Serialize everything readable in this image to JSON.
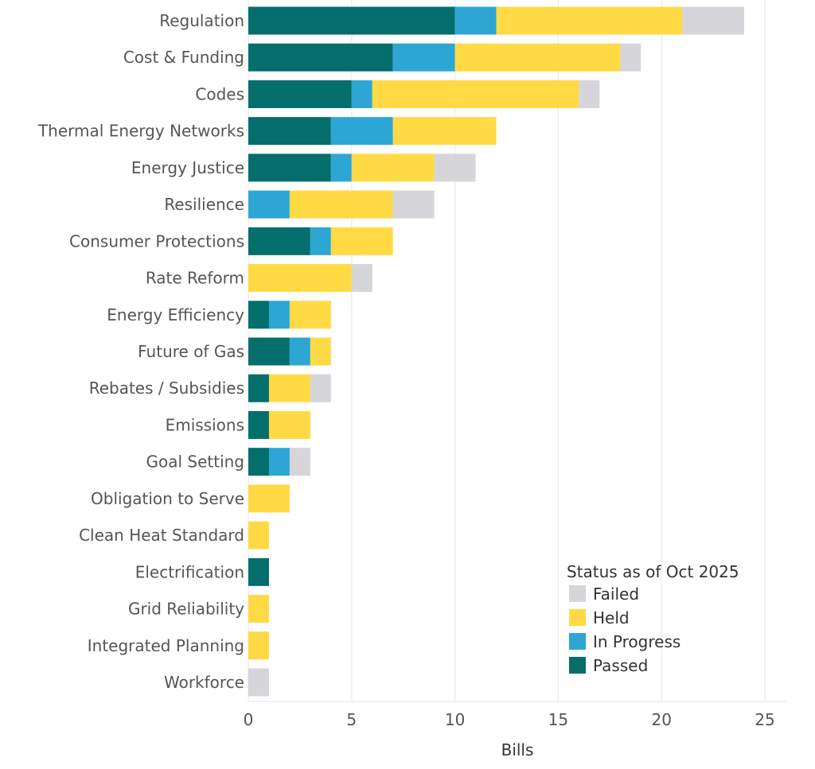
{
  "chart_data": {
    "type": "bar",
    "orientation": "horizontal",
    "stacked": true,
    "xlabel": "Bills",
    "ylabel": "",
    "xlim": [
      0,
      26
    ],
    "xticks": [
      0,
      5,
      10,
      15,
      20,
      25
    ],
    "grid": true,
    "legend": {
      "title": "Status as of Oct 2025",
      "placement": "bottom-right",
      "order": [
        "Failed",
        "Held",
        "In Progress",
        "Passed"
      ]
    },
    "categories": [
      "Regulation",
      "Cost & Funding",
      "Codes",
      "Thermal Energy Networks",
      "Energy Justice",
      "Resilience",
      "Consumer Protections",
      "Rate Reform",
      "Energy Efficiency",
      "Future of Gas",
      "Rebates / Subsidies",
      "Emissions",
      "Goal Setting",
      "Obligation to Serve",
      "Clean Heat Standard",
      "Electrification",
      "Grid Reliability",
      "Integrated Planning",
      "Workforce"
    ],
    "series": [
      {
        "name": "Passed",
        "color": "#036e6b",
        "values": [
          10,
          7,
          5,
          4,
          4,
          0,
          3,
          0,
          1,
          2,
          1,
          1,
          1,
          0,
          0,
          1,
          0,
          0,
          0
        ]
      },
      {
        "name": "In Progress",
        "color": "#2ea6d3",
        "values": [
          2,
          3,
          1,
          3,
          1,
          2,
          1,
          0,
          1,
          1,
          0,
          0,
          1,
          0,
          0,
          0,
          0,
          0,
          0
        ]
      },
      {
        "name": "Held",
        "color": "#ffda45",
        "values": [
          9,
          8,
          10,
          5,
          4,
          5,
          3,
          5,
          2,
          1,
          2,
          2,
          0,
          2,
          1,
          0,
          1,
          1,
          0
        ]
      },
      {
        "name": "Failed",
        "color": "#d5d5da",
        "values": [
          3,
          1,
          1,
          0,
          2,
          2,
          0,
          1,
          0,
          0,
          1,
          0,
          1,
          0,
          0,
          0,
          0,
          0,
          1
        ]
      }
    ]
  }
}
